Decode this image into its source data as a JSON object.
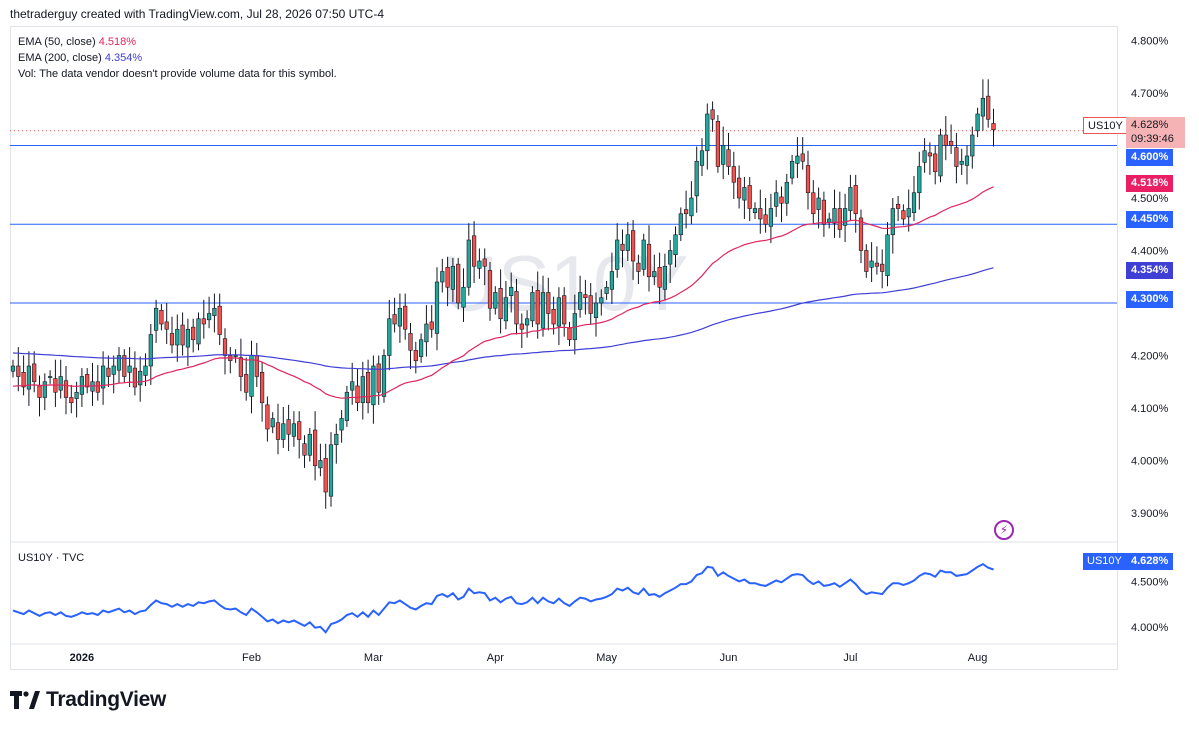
{
  "header": {
    "attribution": "thetraderguy created with TradingView.com, Jul 28, 2026 07:50 UTC-4"
  },
  "legend": {
    "ema50_label": "EMA (50, close)",
    "ema50_value": "4.518%",
    "ema200_label": "EMA (200, close)",
    "ema200_value": "4.354%",
    "vol_text": "Vol: The data vendor doesn't provide volume data for this symbol."
  },
  "watermark": "US10Y",
  "price_axis": {
    "ticks": [
      "4.800%",
      "4.700%",
      "4.500%",
      "4.400%",
      "4.200%",
      "4.100%",
      "4.000%",
      "3.900%"
    ],
    "symbol": "US10Y",
    "last_price": "4.628%",
    "countdown": "09:39:46",
    "level_tags": [
      "4.600%",
      "4.450%",
      "4.300%"
    ],
    "ema50_tag": "4.518%",
    "ema200_tag": "4.354%"
  },
  "indicator": {
    "label": "US10Y · TVC",
    "ticks": [
      "4.500%",
      "4.000%"
    ],
    "symbol": "US10Y",
    "last_price": "4.628%"
  },
  "time_axis": {
    "labels": [
      "2026",
      "Feb",
      "Mar",
      "Apr",
      "May",
      "Jun",
      "Jul",
      "Aug"
    ]
  },
  "brand": {
    "logo_text": "TradingView"
  },
  "colors": {
    "up": "#26a69a",
    "down": "#ef5350",
    "ema50": "#e0245e",
    "ema200": "#3f3fd6",
    "level_line": "#2962ff",
    "line": "#2962ff"
  },
  "chart_data": {
    "type": "candlestick",
    "symbol": "US10Y",
    "ylim": [
      3.86,
      4.82
    ],
    "y_ticks": [
      3.9,
      4.0,
      4.1,
      4.2,
      4.4,
      4.5,
      4.7,
      4.8
    ],
    "horizontal_levels": [
      4.6,
      4.45,
      4.3
    ],
    "last_price": 4.628,
    "month_labels": [
      [
        "2026",
        13
      ],
      [
        "Feb",
        45
      ],
      [
        "Mar",
        68
      ],
      [
        "Apr",
        91
      ],
      [
        "May",
        112
      ],
      [
        "Jun",
        135
      ],
      [
        "Jul",
        158
      ],
      [
        "Aug",
        182
      ]
    ],
    "closes": [
      4.18,
      4.16,
      4.14,
      4.18,
      4.15,
      4.12,
      4.15,
      4.16,
      4.13,
      4.16,
      4.12,
      4.11,
      4.13,
      4.16,
      4.14,
      4.15,
      4.13,
      4.18,
      4.16,
      4.18,
      4.2,
      4.16,
      4.18,
      4.14,
      4.17,
      4.18,
      4.24,
      4.29,
      4.26,
      4.25,
      4.22,
      4.25,
      4.22,
      4.25,
      4.23,
      4.27,
      4.26,
      4.28,
      4.29,
      4.24,
      4.2,
      4.19,
      4.2,
      4.16,
      4.13,
      4.2,
      4.16,
      4.11,
      4.06,
      4.08,
      4.04,
      4.07,
      4.05,
      4.07,
      4.04,
      4.01,
      4.05,
      3.99,
      4.0,
      3.94,
      4.03,
      4.05,
      4.08,
      4.13,
      4.15,
      4.11,
      4.16,
      4.11,
      4.18,
      4.13,
      4.2,
      4.27,
      4.26,
      4.29,
      4.25,
      4.21,
      4.19,
      4.23,
      4.26,
      4.25,
      4.34,
      4.36,
      4.33,
      4.37,
      4.3,
      4.33,
      4.42,
      4.37,
      4.38,
      4.37,
      4.29,
      4.32,
      4.27,
      4.31,
      4.33,
      4.26,
      4.25,
      4.27,
      4.32,
      4.26,
      4.32,
      4.28,
      4.26,
      4.31,
      4.26,
      4.23,
      4.28,
      4.32,
      4.31,
      4.28,
      4.3,
      4.31,
      4.33,
      4.36,
      4.42,
      4.4,
      4.43,
      4.38,
      4.36,
      4.42,
      4.35,
      4.36,
      4.33,
      4.37,
      4.4,
      4.43,
      4.47,
      4.47,
      4.5,
      4.57,
      4.59,
      4.66,
      4.65,
      4.56,
      4.6,
      4.56,
      4.53,
      4.5,
      4.52,
      4.48,
      4.48,
      4.46,
      4.45,
      4.48,
      4.51,
      4.49,
      4.53,
      4.57,
      4.58,
      4.57,
      4.51,
      4.47,
      4.5,
      4.45,
      4.46,
      4.48,
      4.44,
      4.48,
      4.52,
      4.47,
      4.4,
      4.36,
      4.38,
      4.37,
      4.36,
      4.43,
      4.48,
      4.48,
      4.46,
      4.48,
      4.51,
      4.56,
      4.59,
      4.58,
      4.55,
      4.62,
      4.6,
      4.6,
      4.56,
      4.57,
      4.58,
      4.62,
      4.66,
      4.69,
      4.65,
      4.63
    ],
    "indicator_ylim": [
      3.8,
      4.9
    ],
    "indicator_ticks": [
      4.5,
      4.0
    ]
  }
}
